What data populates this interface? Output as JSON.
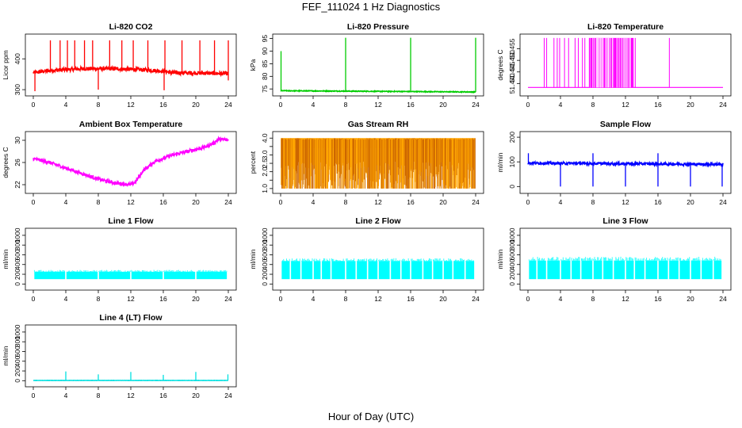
{
  "title": "FEF_111024  1 Hz Diagnostics",
  "xlabel": "Hour of Day (UTC)",
  "chart_data": [
    {
      "type": "line",
      "title": "Li-820 CO2",
      "ylabel": "Licor ppm",
      "color": "#ff0000",
      "xlim": [
        0,
        24
      ],
      "ylim": [
        290,
        470
      ],
      "xticks": [
        0,
        4,
        8,
        12,
        16,
        20,
        24
      ],
      "yticks": [
        300,
        400
      ],
      "baseline": [
        [
          0,
          355
        ],
        [
          2,
          362
        ],
        [
          6,
          368
        ],
        [
          10,
          368
        ],
        [
          14,
          364
        ],
        [
          16,
          360
        ],
        [
          17,
          355
        ],
        [
          20,
          354
        ],
        [
          24,
          352
        ]
      ],
      "noise": 6,
      "spikes": [
        [
          2.1,
          460
        ],
        [
          3.3,
          460
        ],
        [
          4.2,
          460
        ],
        [
          5.1,
          460
        ],
        [
          6.3,
          460
        ],
        [
          7.3,
          460
        ],
        [
          9.4,
          460
        ],
        [
          10.9,
          460
        ],
        [
          12.3,
          460
        ],
        [
          14.1,
          460
        ],
        [
          16.2,
          460
        ],
        [
          18.3,
          460
        ],
        [
          20.5,
          460
        ],
        [
          22.3,
          460
        ],
        [
          24,
          460
        ]
      ],
      "dips": [
        [
          0.2,
          295
        ],
        [
          8.0,
          300
        ],
        [
          16.1,
          298
        ],
        [
          24,
          330
        ]
      ]
    },
    {
      "type": "line",
      "title": "Li-820 Pressure",
      "ylabel": "kPa",
      "color": "#00cc00",
      "xlim": [
        0,
        24
      ],
      "ylim": [
        73.5,
        95.5
      ],
      "xticks": [
        0,
        4,
        8,
        12,
        16,
        20,
        24
      ],
      "yticks": [
        75,
        80,
        85,
        90,
        95
      ],
      "baseline": [
        [
          0,
          74.3
        ],
        [
          24,
          73.8
        ]
      ],
      "noise": 0.15,
      "spikes": [
        [
          0.05,
          90
        ],
        [
          8.0,
          95.3
        ],
        [
          16.0,
          95.3
        ],
        [
          24,
          95.3
        ]
      ],
      "dips": []
    },
    {
      "type": "line",
      "title": "Li-820 Temperature",
      "ylabel": "degrees C",
      "color": "#ff00ff",
      "xlim": [
        0,
        24
      ],
      "ylim": [
        51.436,
        51.46
      ],
      "xticks": [
        0,
        4,
        8,
        12,
        16,
        20,
        24
      ],
      "yticks": [
        51.44,
        51.445,
        51.45,
        51.455
      ],
      "ytick_labels": [
        "51.440",
        "51.445",
        "51.450",
        "51.455"
      ],
      "low": 51.4383,
      "high": 51.4597,
      "dense_intervals": [
        [
          7.5,
          13
        ]
      ],
      "toggle_times": [
        2.0,
        2.3,
        3.2,
        3.6,
        3.9,
        4.5,
        5.0,
        5.8,
        6.2,
        6.7,
        7.0,
        13.2,
        17.4
      ]
    },
    {
      "type": "line",
      "title": "Ambient Box Temperature",
      "ylabel": "degrees C",
      "color": "#ff00ff",
      "xlim": [
        0,
        24
      ],
      "ylim": [
        21,
        31
      ],
      "xticks": [
        0,
        4,
        8,
        12,
        16,
        20,
        24
      ],
      "yticks": [
        22,
        26,
        30
      ],
      "baseline": [
        [
          0,
          26.7
        ],
        [
          2,
          26.0
        ],
        [
          4,
          25.0
        ],
        [
          6,
          24.0
        ],
        [
          8,
          23.0
        ],
        [
          10,
          22.3
        ],
        [
          12,
          22.0
        ],
        [
          12.6,
          22.5
        ],
        [
          13.5,
          24.5
        ],
        [
          15,
          26.2
        ],
        [
          17,
          27.3
        ],
        [
          19,
          28.0
        ],
        [
          21,
          28.7
        ],
        [
          22.2,
          29.5
        ],
        [
          22.8,
          30.2
        ],
        [
          24,
          30.0
        ]
      ],
      "noise": 0.3,
      "spikes": [],
      "dips": []
    },
    {
      "type": "line",
      "title": "Gas Stream RH",
      "ylabel": "percent",
      "color": "#ffa500",
      "color_alt": "#cc6600",
      "xlim": [
        0,
        24
      ],
      "ylim": [
        0.9,
        4.2
      ],
      "xticks": [
        0,
        4,
        8,
        12,
        16,
        20,
        24
      ],
      "yticks": [
        1.0,
        1.5,
        2.0,
        2.5,
        3.0,
        3.5,
        4.0
      ],
      "ytick_labels": [
        "1.0",
        "",
        "2.0",
        "2.5",
        "3.0",
        "",
        "4.0"
      ],
      "band": [
        1.0,
        4.0
      ],
      "low_level": 3.4
    },
    {
      "type": "line",
      "title": "Sample Flow",
      "ylabel": "ml/min",
      "color": "#0000ff",
      "xlim": [
        0,
        24
      ],
      "ylim": [
        -15,
        210
      ],
      "xticks": [
        0,
        4,
        8,
        12,
        16,
        20,
        24
      ],
      "yticks": [
        0,
        100,
        200
      ],
      "baseline": [
        [
          0,
          95
        ],
        [
          24,
          90
        ]
      ],
      "noise": 5,
      "spikes": [
        [
          0.05,
          135
        ],
        [
          8.0,
          135
        ],
        [
          16.0,
          135
        ]
      ],
      "dips": [
        [
          4.0,
          0
        ],
        [
          8.0,
          0
        ],
        [
          12.0,
          0
        ],
        [
          16.0,
          0
        ],
        [
          20.0,
          0
        ],
        [
          23.9,
          0
        ]
      ]
    },
    {
      "type": "area",
      "title": "Line 1 Flow",
      "ylabel": "ml/min",
      "color": "#00ffff",
      "xlim": [
        0,
        24
      ],
      "ylim": [
        -60,
        1080
      ],
      "xticks": [
        0,
        4,
        8,
        12,
        16,
        20,
        24
      ],
      "yticks": [
        0,
        200,
        400,
        600,
        800,
        1000
      ],
      "band": [
        100,
        250
      ],
      "peak": 290,
      "gaps": [
        4.0,
        8.0,
        12.0,
        16.0,
        20.0
      ]
    },
    {
      "type": "area",
      "title": "Line 2 Flow",
      "ylabel": "ml/min",
      "color": "#00ffff",
      "xlim": [
        0,
        24
      ],
      "ylim": [
        -60,
        1080
      ],
      "xticks": [
        0,
        4,
        8,
        12,
        16,
        20,
        24
      ],
      "yticks": [
        0,
        200,
        400,
        600,
        800,
        1000
      ],
      "band": [
        100,
        470
      ],
      "peak": 530,
      "gaps": [
        1.2,
        2.5,
        4.0,
        5.0,
        6.2,
        8.0,
        9.3,
        10.7,
        12.0,
        13.5,
        14.8,
        16.0,
        17.5,
        18.7,
        20.0,
        21.2,
        22.7
      ]
    },
    {
      "type": "area",
      "title": "Line 3 Flow",
      "ylabel": "ml/min",
      "color": "#00ffff",
      "xlim": [
        0,
        24
      ],
      "ylim": [
        -60,
        1080
      ],
      "xticks": [
        0,
        4,
        8,
        12,
        16,
        20,
        24
      ],
      "yticks": [
        0,
        200,
        400,
        600,
        800,
        1000
      ],
      "band": [
        100,
        480
      ],
      "peak": 560,
      "gaps": [
        1.1,
        2.3,
        4.0,
        5.3,
        6.5,
        8.0,
        9.2,
        10.5,
        12.0,
        13.1,
        14.4,
        16.0,
        17.3,
        18.6,
        20.0,
        21.3,
        22.8
      ]
    },
    {
      "type": "line",
      "title": "Line 4 (LT) Flow",
      "ylabel": "ml/min",
      "color": "#00e0e0",
      "xlim": [
        0,
        24
      ],
      "ylim": [
        -60,
        1080
      ],
      "xticks": [
        0,
        4,
        8,
        12,
        16,
        20,
        24
      ],
      "yticks": [
        0,
        200,
        400,
        600,
        800,
        1000
      ],
      "baseline": [
        [
          0,
          5
        ],
        [
          24,
          5
        ]
      ],
      "noise": 2,
      "spikes": [
        [
          4.0,
          190
        ],
        [
          8.0,
          130
        ],
        [
          12.0,
          180
        ],
        [
          16.0,
          120
        ],
        [
          20.0,
          180
        ],
        [
          23.95,
          130
        ]
      ],
      "dips": []
    }
  ]
}
